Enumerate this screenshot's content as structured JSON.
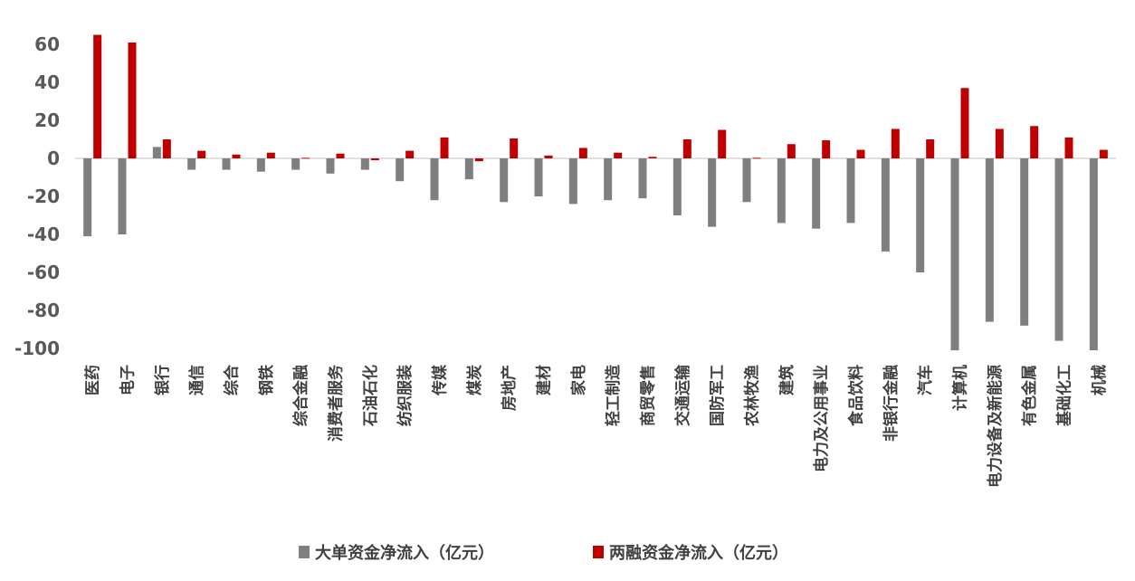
{
  "chart_data": {
    "type": "bar",
    "categories": [
      "医药",
      "电子",
      "银行",
      "通信",
      "综合",
      "钢铁",
      "综合金融",
      "消费者服务",
      "石油石化",
      "纺织服装",
      "传媒",
      "煤炭",
      "房地产",
      "建材",
      "家电",
      "轻工制造",
      "商贸零售",
      "交通运输",
      "国防军工",
      "农林牧渔",
      "建筑",
      "电力及公用事业",
      "食品饮料",
      "非银行金融",
      "汽车",
      "计算机",
      "电力设备及新能源",
      "有色金属",
      "基础化工",
      "机械"
    ],
    "series": [
      {
        "name": "大单资金净流入（亿元）",
        "color": "#7f7f7f",
        "values": [
          -41,
          -40,
          6,
          -6,
          -6,
          -7,
          -6,
          -8,
          -6,
          -12,
          -22,
          -11,
          -23,
          -20,
          -24,
          -22,
          -21,
          -30,
          -36,
          -23,
          -34,
          -37,
          -34,
          -49,
          -60,
          -101,
          -86,
          -88,
          -96,
          -101
        ]
      },
      {
        "name": "两融资金净流入（亿元）",
        "color": "#c00000",
        "values": [
          65,
          61,
          10,
          4,
          2,
          3,
          0.3,
          2.5,
          -1,
          4,
          11,
          -1.5,
          10.5,
          1.5,
          5.5,
          3,
          0.8,
          10,
          15,
          0.3,
          7.5,
          9.5,
          4.5,
          15.5,
          10,
          37,
          15.5,
          17,
          11,
          4.5
        ]
      }
    ],
    "yticks": [
      "60",
      "40",
      "20",
      "0",
      "-20",
      "-40",
      "-60",
      "-80",
      "-100"
    ],
    "ylim": [
      -100,
      65
    ],
    "legend_position": "bottom"
  }
}
